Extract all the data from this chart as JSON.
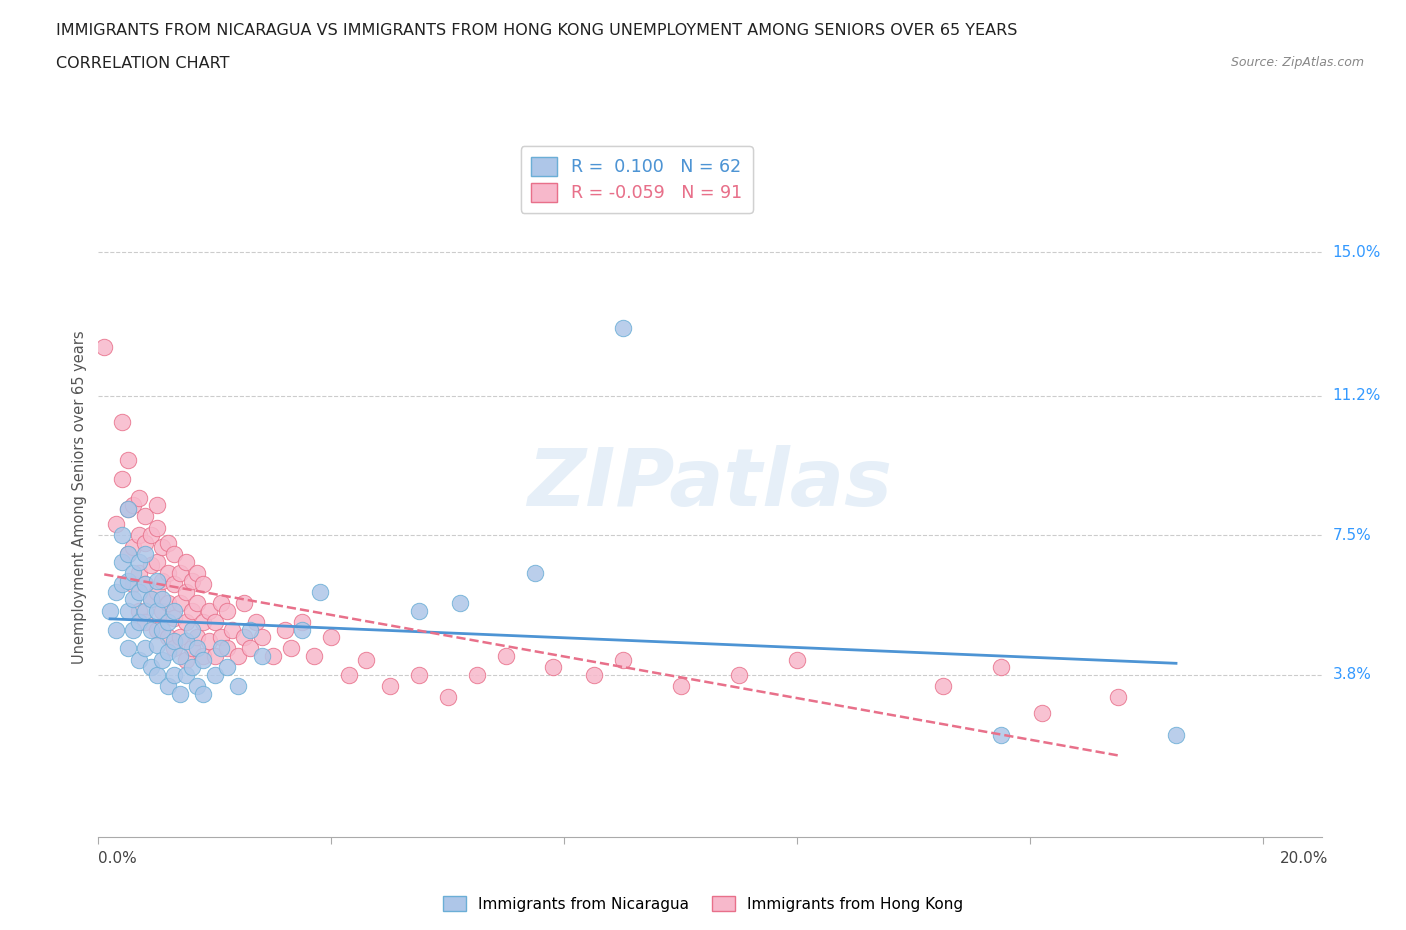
{
  "title_line1": "IMMIGRANTS FROM NICARAGUA VS IMMIGRANTS FROM HONG KONG UNEMPLOYMENT AMONG SENIORS OVER 65 YEARS",
  "title_line2": "CORRELATION CHART",
  "source_text": "Source: ZipAtlas.com",
  "ylabel": "Unemployment Among Seniors over 65 years",
  "xlim": [
    0.0,
    0.21
  ],
  "ylim": [
    -0.005,
    0.175
  ],
  "ytick_positions": [
    0.038,
    0.075,
    0.112,
    0.15
  ],
  "ytick_labels": [
    "3.8%",
    "7.5%",
    "11.2%",
    "15.0%"
  ],
  "hlines": [
    0.038,
    0.075,
    0.112,
    0.15
  ],
  "nicaragua_color": "#aec6e8",
  "nicaragua_edge_color": "#6baed6",
  "hong_kong_color": "#f7b8cb",
  "hong_kong_edge_color": "#e8708a",
  "nicaragua_line_color": "#4d94d4",
  "hong_kong_line_color": "#e8708a",
  "nicaragua_R": 0.1,
  "nicaragua_N": 62,
  "hong_kong_R": -0.059,
  "hong_kong_N": 91,
  "watermark": "ZIPatlas",
  "nicaragua_scatter": [
    [
      0.002,
      0.055
    ],
    [
      0.003,
      0.05
    ],
    [
      0.003,
      0.06
    ],
    [
      0.004,
      0.062
    ],
    [
      0.004,
      0.068
    ],
    [
      0.004,
      0.075
    ],
    [
      0.005,
      0.045
    ],
    [
      0.005,
      0.055
    ],
    [
      0.005,
      0.063
    ],
    [
      0.005,
      0.07
    ],
    [
      0.005,
      0.082
    ],
    [
      0.006,
      0.05
    ],
    [
      0.006,
      0.058
    ],
    [
      0.006,
      0.065
    ],
    [
      0.007,
      0.042
    ],
    [
      0.007,
      0.052
    ],
    [
      0.007,
      0.06
    ],
    [
      0.007,
      0.068
    ],
    [
      0.008,
      0.045
    ],
    [
      0.008,
      0.055
    ],
    [
      0.008,
      0.062
    ],
    [
      0.008,
      0.07
    ],
    [
      0.009,
      0.04
    ],
    [
      0.009,
      0.05
    ],
    [
      0.009,
      0.058
    ],
    [
      0.01,
      0.038
    ],
    [
      0.01,
      0.046
    ],
    [
      0.01,
      0.055
    ],
    [
      0.01,
      0.063
    ],
    [
      0.011,
      0.042
    ],
    [
      0.011,
      0.05
    ],
    [
      0.011,
      0.058
    ],
    [
      0.012,
      0.035
    ],
    [
      0.012,
      0.044
    ],
    [
      0.012,
      0.052
    ],
    [
      0.013,
      0.038
    ],
    [
      0.013,
      0.047
    ],
    [
      0.013,
      0.055
    ],
    [
      0.014,
      0.033
    ],
    [
      0.014,
      0.043
    ],
    [
      0.015,
      0.038
    ],
    [
      0.015,
      0.047
    ],
    [
      0.016,
      0.04
    ],
    [
      0.016,
      0.05
    ],
    [
      0.017,
      0.035
    ],
    [
      0.017,
      0.045
    ],
    [
      0.018,
      0.033
    ],
    [
      0.018,
      0.042
    ],
    [
      0.02,
      0.038
    ],
    [
      0.021,
      0.045
    ],
    [
      0.022,
      0.04
    ],
    [
      0.024,
      0.035
    ],
    [
      0.026,
      0.05
    ],
    [
      0.028,
      0.043
    ],
    [
      0.035,
      0.05
    ],
    [
      0.038,
      0.06
    ],
    [
      0.055,
      0.055
    ],
    [
      0.062,
      0.057
    ],
    [
      0.075,
      0.065
    ],
    [
      0.09,
      0.13
    ],
    [
      0.155,
      0.022
    ],
    [
      0.185,
      0.022
    ]
  ],
  "hong_kong_scatter": [
    [
      0.001,
      0.125
    ],
    [
      0.003,
      0.078
    ],
    [
      0.004,
      0.09
    ],
    [
      0.004,
      0.105
    ],
    [
      0.005,
      0.07
    ],
    [
      0.005,
      0.082
    ],
    [
      0.005,
      0.095
    ],
    [
      0.006,
      0.062
    ],
    [
      0.006,
      0.072
    ],
    [
      0.006,
      0.083
    ],
    [
      0.007,
      0.055
    ],
    [
      0.007,
      0.065
    ],
    [
      0.007,
      0.075
    ],
    [
      0.007,
      0.085
    ],
    [
      0.008,
      0.052
    ],
    [
      0.008,
      0.062
    ],
    [
      0.008,
      0.073
    ],
    [
      0.008,
      0.08
    ],
    [
      0.009,
      0.058
    ],
    [
      0.009,
      0.067
    ],
    [
      0.009,
      0.075
    ],
    [
      0.01,
      0.05
    ],
    [
      0.01,
      0.06
    ],
    [
      0.01,
      0.068
    ],
    [
      0.01,
      0.077
    ],
    [
      0.01,
      0.083
    ],
    [
      0.011,
      0.055
    ],
    [
      0.011,
      0.063
    ],
    [
      0.011,
      0.072
    ],
    [
      0.012,
      0.048
    ],
    [
      0.012,
      0.057
    ],
    [
      0.012,
      0.065
    ],
    [
      0.012,
      0.073
    ],
    [
      0.013,
      0.045
    ],
    [
      0.013,
      0.053
    ],
    [
      0.013,
      0.062
    ],
    [
      0.013,
      0.07
    ],
    [
      0.014,
      0.048
    ],
    [
      0.014,
      0.057
    ],
    [
      0.014,
      0.065
    ],
    [
      0.015,
      0.042
    ],
    [
      0.015,
      0.052
    ],
    [
      0.015,
      0.06
    ],
    [
      0.015,
      0.068
    ],
    [
      0.016,
      0.045
    ],
    [
      0.016,
      0.055
    ],
    [
      0.016,
      0.063
    ],
    [
      0.017,
      0.048
    ],
    [
      0.017,
      0.057
    ],
    [
      0.017,
      0.065
    ],
    [
      0.018,
      0.043
    ],
    [
      0.018,
      0.052
    ],
    [
      0.018,
      0.062
    ],
    [
      0.019,
      0.047
    ],
    [
      0.019,
      0.055
    ],
    [
      0.02,
      0.043
    ],
    [
      0.02,
      0.052
    ],
    [
      0.021,
      0.048
    ],
    [
      0.021,
      0.057
    ],
    [
      0.022,
      0.045
    ],
    [
      0.022,
      0.055
    ],
    [
      0.023,
      0.05
    ],
    [
      0.024,
      0.043
    ],
    [
      0.025,
      0.048
    ],
    [
      0.025,
      0.057
    ],
    [
      0.026,
      0.045
    ],
    [
      0.027,
      0.052
    ],
    [
      0.028,
      0.048
    ],
    [
      0.03,
      0.043
    ],
    [
      0.032,
      0.05
    ],
    [
      0.033,
      0.045
    ],
    [
      0.035,
      0.052
    ],
    [
      0.037,
      0.043
    ],
    [
      0.04,
      0.048
    ],
    [
      0.043,
      0.038
    ],
    [
      0.046,
      0.042
    ],
    [
      0.05,
      0.035
    ],
    [
      0.055,
      0.038
    ],
    [
      0.06,
      0.032
    ],
    [
      0.065,
      0.038
    ],
    [
      0.07,
      0.043
    ],
    [
      0.078,
      0.04
    ],
    [
      0.085,
      0.038
    ],
    [
      0.09,
      0.042
    ],
    [
      0.1,
      0.035
    ],
    [
      0.11,
      0.038
    ],
    [
      0.12,
      0.042
    ],
    [
      0.145,
      0.035
    ],
    [
      0.155,
      0.04
    ],
    [
      0.162,
      0.028
    ],
    [
      0.175,
      0.032
    ]
  ]
}
